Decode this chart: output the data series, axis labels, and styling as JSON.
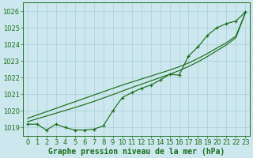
{
  "x": [
    0,
    1,
    2,
    3,
    4,
    5,
    6,
    7,
    8,
    9,
    10,
    11,
    12,
    13,
    14,
    15,
    16,
    17,
    18,
    19,
    20,
    21,
    22,
    23
  ],
  "y_main": [
    1019.2,
    1019.2,
    1018.85,
    1019.2,
    1019.0,
    1018.85,
    1018.85,
    1018.9,
    1019.1,
    1020.0,
    1020.8,
    1021.1,
    1021.35,
    1021.55,
    1021.85,
    1022.2,
    1022.15,
    1023.3,
    1023.85,
    1024.55,
    1025.0,
    1025.25,
    1025.4,
    1025.95
  ],
  "y_smooth1": [
    1019.55,
    1019.75,
    1019.95,
    1020.15,
    1020.35,
    1020.55,
    1020.75,
    1020.95,
    1021.15,
    1021.35,
    1021.55,
    1021.73,
    1021.91,
    1022.09,
    1022.27,
    1022.45,
    1022.65,
    1022.88,
    1023.15,
    1023.45,
    1023.78,
    1024.1,
    1024.5,
    1025.9
  ],
  "y_smooth2": [
    1019.35,
    1019.52,
    1019.69,
    1019.86,
    1020.03,
    1020.2,
    1020.38,
    1020.57,
    1020.77,
    1020.98,
    1021.19,
    1021.4,
    1021.6,
    1021.8,
    1022.0,
    1022.2,
    1022.42,
    1022.67,
    1022.95,
    1023.27,
    1023.62,
    1023.97,
    1024.4,
    1025.9
  ],
  "line_color": "#1a6e1a",
  "bg_color": "#cce8ee",
  "grid_major_color": "#aacfd8",
  "grid_minor_color": "#bddce3",
  "xlabel": "Graphe pression niveau de la mer (hPa)",
  "ylim": [
    1018.5,
    1026.5
  ],
  "xlim": [
    -0.5,
    23.5
  ],
  "yticks": [
    1019,
    1020,
    1021,
    1022,
    1023,
    1024,
    1025,
    1026
  ],
  "xticks": [
    0,
    1,
    2,
    3,
    4,
    5,
    6,
    7,
    8,
    9,
    10,
    11,
    12,
    13,
    14,
    15,
    16,
    17,
    18,
    19,
    20,
    21,
    22,
    23
  ],
  "xlabel_fontsize": 7.0,
  "tick_fontsize": 6.0
}
